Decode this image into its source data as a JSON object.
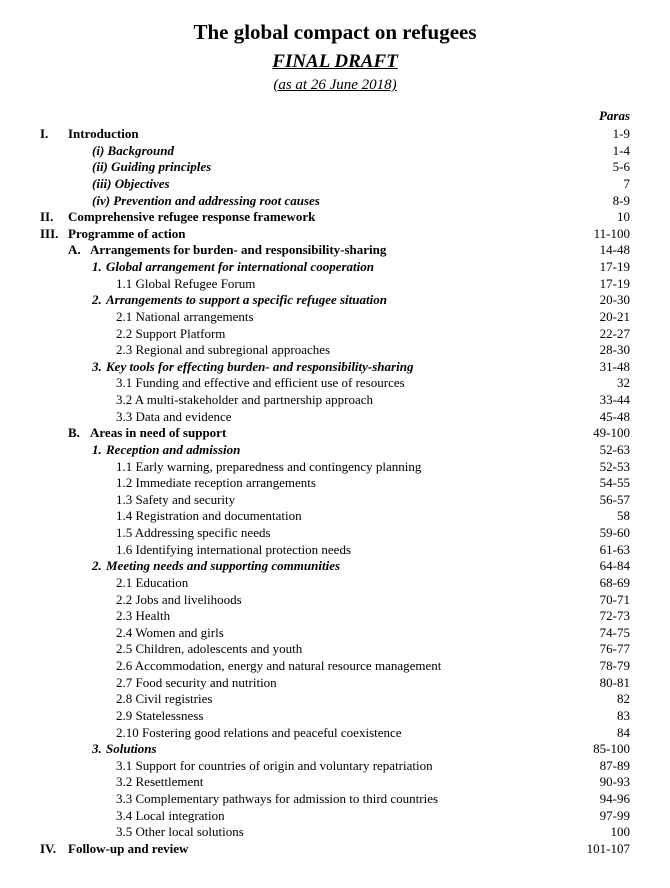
{
  "title": "The global compact on refugees",
  "subtitle": "FINAL DRAFT",
  "date": "(as at 26 June 2018)",
  "paras_header": "Paras",
  "toc": [
    {
      "indent": 0,
      "style": "bold",
      "numClass": "w-roman",
      "num": "I.",
      "label": "Introduction",
      "page": "1-9"
    },
    {
      "indent": 2,
      "style": "bolditalic",
      "num": "",
      "label": "(i) Background",
      "page": "1-4"
    },
    {
      "indent": 2,
      "style": "bolditalic",
      "num": "",
      "label": "(ii) Guiding principles",
      "page": "5-6"
    },
    {
      "indent": 2,
      "style": "bolditalic",
      "num": "",
      "label": "(iii) Objectives",
      "page": " 7"
    },
    {
      "indent": 2,
      "style": "bolditalic",
      "num": "",
      "label": "(iv) Prevention and addressing root causes",
      "page": "8-9"
    },
    {
      "indent": 0,
      "style": "bold",
      "numClass": "w-roman",
      "num": "II.",
      "label": "Comprehensive refugee response framework",
      "page": " 10"
    },
    {
      "indent": 0,
      "style": "bold",
      "numClass": "w-roman",
      "num": "III.",
      "label": "Programme of action",
      "page": "11-100"
    },
    {
      "indent": 1,
      "style": "bold",
      "numClass": "w-letter",
      "num": "A.",
      "label": "Arrangements for burden- and responsibility-sharing",
      "page": "14-48"
    },
    {
      "indent": 2,
      "style": "bolditalic",
      "numClass": "w-num1",
      "num": "1.",
      "label": "Global arrangement for international cooperation",
      "page": "17-19"
    },
    {
      "indent": 3,
      "style": "",
      "num": "",
      "label": "1.1 Global Refugee Forum",
      "page": "17-19"
    },
    {
      "indent": 2,
      "style": "bolditalic",
      "numClass": "w-num1",
      "num": "2.",
      "label": "Arrangements to support a specific refugee situation",
      "page": "20-30"
    },
    {
      "indent": 3,
      "style": "",
      "num": "",
      "label": "2.1 National arrangements",
      "page": "20-21"
    },
    {
      "indent": 3,
      "style": "",
      "num": "",
      "label": "2.2 Support Platform",
      "page": "22-27"
    },
    {
      "indent": 3,
      "style": "",
      "num": "",
      "label": "2.3 Regional and subregional approaches",
      "page": "28-30"
    },
    {
      "indent": 2,
      "style": "bolditalic",
      "numClass": "w-num1",
      "num": "3.",
      "label": "Key tools for effecting burden- and responsibility-sharing",
      "page": "31-48"
    },
    {
      "indent": 3,
      "style": "",
      "num": "",
      "label": "3.1 Funding and effective and efficient use of resources",
      "page": " 32"
    },
    {
      "indent": 3,
      "style": "",
      "num": "",
      "label": "3.2 A multi-stakeholder and partnership approach",
      "page": "33-44"
    },
    {
      "indent": 3,
      "style": "",
      "num": "",
      "label": "3.3 Data and evidence",
      "page": "45-48"
    },
    {
      "indent": 1,
      "style": "bold",
      "numClass": "w-letter",
      "num": "B.",
      "label": "Areas in need of support",
      "page": "49-100"
    },
    {
      "indent": 2,
      "style": "bolditalic",
      "numClass": "w-num1",
      "num": "1.",
      "label": "Reception and admission",
      "page": "52-63"
    },
    {
      "indent": 3,
      "style": "",
      "num": "",
      "label": "1.1 Early warning, preparedness and contingency planning",
      "page": "52-53"
    },
    {
      "indent": 3,
      "style": "",
      "num": "",
      "label": "1.2 Immediate reception arrangements",
      "page": "54-55"
    },
    {
      "indent": 3,
      "style": "",
      "num": "",
      "label": "1.3 Safety and security",
      "page": "56-57"
    },
    {
      "indent": 3,
      "style": "",
      "num": "",
      "label": "1.4 Registration and documentation",
      "page": " 58"
    },
    {
      "indent": 3,
      "style": "",
      "num": "",
      "label": "1.5 Addressing specific needs",
      "page": "59-60"
    },
    {
      "indent": 3,
      "style": "",
      "num": "",
      "label": "1.6 Identifying international protection needs",
      "page": "61-63"
    },
    {
      "indent": 2,
      "style": "bolditalic",
      "numClass": "w-num1",
      "num": "2.",
      "label": "Meeting needs and supporting communities",
      "page": "64-84"
    },
    {
      "indent": 3,
      "style": "",
      "num": "",
      "label": "2.1 Education",
      "page": "68-69"
    },
    {
      "indent": 3,
      "style": "",
      "num": "",
      "label": "2.2 Jobs and livelihoods",
      "page": "70-71"
    },
    {
      "indent": 3,
      "style": "",
      "num": "",
      "label": "2.3 Health",
      "page": "72-73"
    },
    {
      "indent": 3,
      "style": "",
      "num": "",
      "label": "2.4 Women and girls",
      "page": "74-75"
    },
    {
      "indent": 3,
      "style": "",
      "num": "",
      "label": "2.5 Children, adolescents and youth",
      "page": "76-77"
    },
    {
      "indent": 3,
      "style": "",
      "num": "",
      "label": "2.6 Accommodation, energy and natural resource management",
      "page": "78-79"
    },
    {
      "indent": 3,
      "style": "",
      "num": "",
      "label": "2.7 Food security and nutrition",
      "page": "80-81"
    },
    {
      "indent": 3,
      "style": "",
      "num": "",
      "label": "2.8 Civil registries",
      "page": " 82"
    },
    {
      "indent": 3,
      "style": "",
      "num": "",
      "label": "2.9 Statelessness",
      "page": " 83"
    },
    {
      "indent": 3,
      "style": "",
      "num": "",
      "label": "2.10 Fostering good relations and peaceful coexistence",
      "page": " 84"
    },
    {
      "indent": 2,
      "style": "bolditalic",
      "numClass": "w-num1",
      "num": "3.",
      "label": "Solutions",
      "page": "85-100"
    },
    {
      "indent": 3,
      "style": "",
      "num": "",
      "label": "3.1 Support for countries of origin and voluntary repatriation",
      "page": "87-89"
    },
    {
      "indent": 3,
      "style": "",
      "num": "",
      "label": "3.2 Resettlement",
      "page": "90-93"
    },
    {
      "indent": 3,
      "style": "",
      "num": "",
      "label": "3.3 Complementary pathways for admission to third countries",
      "page": "94-96"
    },
    {
      "indent": 3,
      "style": "",
      "num": "",
      "label": "3.4 Local integration",
      "page": "97-99"
    },
    {
      "indent": 3,
      "style": "",
      "num": "",
      "label": "3.5 Other local solutions",
      "page": " 100"
    },
    {
      "indent": 0,
      "style": "bold",
      "numClass": "w-roman",
      "num": "IV.",
      "label": "Follow-up and review",
      "page": "101-107"
    }
  ]
}
